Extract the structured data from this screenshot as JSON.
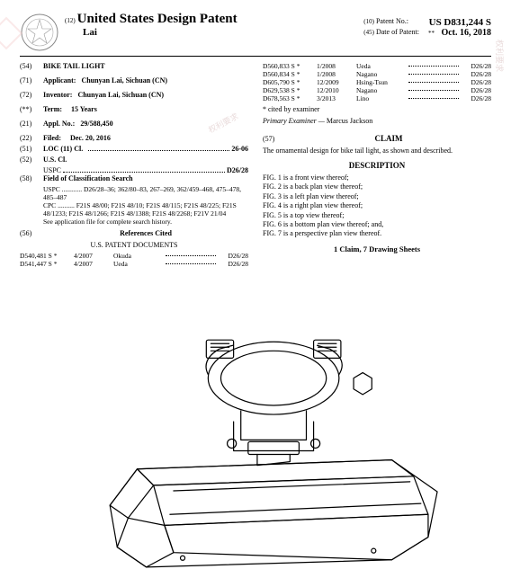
{
  "header": {
    "country_code": "(12)",
    "title": "United States Design Patent",
    "inventor_surname": "Lai",
    "patent_no_code": "(10)",
    "patent_no_label": "Patent No.:",
    "patent_no": "US D831,244 S",
    "date_code": "(45)",
    "date_label": "Date of Patent:",
    "date_stars": "**",
    "date": "Oct. 16, 2018"
  },
  "left": {
    "title_code": "(54)",
    "title_label": "BIKE TAIL LIGHT",
    "applicant_code": "(71)",
    "applicant_label": "Applicant:",
    "applicant": "Chunyan Lai, Sichuan (CN)",
    "inventor_code": "(72)",
    "inventor_label": "Inventor:",
    "inventor": "Chunyan Lai, Sichuan (CN)",
    "term_code": "(**)",
    "term_label": "Term:",
    "term": "15 Years",
    "appl_code": "(21)",
    "appl_label": "Appl. No.:",
    "appl_no": "29/588,450",
    "filed_code": "(22)",
    "filed_label": "Filed:",
    "filed": "Dec. 20, 2016",
    "loc_code": "(51)",
    "loc_label": "LOC (11) Cl.",
    "loc_val": "26-06",
    "uscl_code": "(52)",
    "uscl_label": "U.S. Cl.",
    "uscl_sub_label": "USPC",
    "uscl_val": "D26/28",
    "search_code": "(58)",
    "search_label": "Field of Classification Search",
    "search_uspc_label": "USPC",
    "search_uspc": "D26/28–36; 362/80–83, 267–269, 362/459–468, 475–478, 485–487",
    "search_cpc_label": "CPC",
    "search_cpc": "F21S 48/00; F21S 48/10; F21S 48/115; F21S 48/225; F21S 48/1233; F21S 48/1266; F21S 48/1388; F21S 48/2268; F21V 21/04",
    "search_note": "See application file for complete search history.",
    "refs_code": "(56)",
    "refs_label": "References Cited",
    "refs_subhead": "U.S. PATENT DOCUMENTS",
    "refs": [
      {
        "id": "D540,481 S *",
        "date": "4/2007",
        "name": "Okuda",
        "class": "D26/28"
      },
      {
        "id": "D541,447 S *",
        "date": "4/2007",
        "name": "Ueda",
        "class": "D26/28"
      }
    ]
  },
  "right": {
    "refs_more": [
      {
        "id": "D560,833 S *",
        "date": "1/2008",
        "name": "Ueda",
        "class": "D26/28"
      },
      {
        "id": "D560,834 S *",
        "date": "1/2008",
        "name": "Nagano",
        "class": "D26/28"
      },
      {
        "id": "D605,790 S *",
        "date": "12/2009",
        "name": "Hsing-Tsun",
        "class": "D26/28"
      },
      {
        "id": "D629,538 S *",
        "date": "12/2010",
        "name": "Nagano",
        "class": "D26/28"
      },
      {
        "id": "D678,563 S *",
        "date": "3/2013",
        "name": "Lino",
        "class": "D26/28"
      }
    ],
    "cited_note": "* cited by examiner",
    "examiner_label": "Primary Examiner —",
    "examiner": "Marcus Jackson",
    "abstract_code": "(57)",
    "claim_head": "CLAIM",
    "claim_text": "The ornamental design for bike tail light, as shown and described.",
    "desc_head": "DESCRIPTION",
    "figs": [
      "FIG. 1 is a front view thereof;",
      "FIG. 2 is a back plan view thereof;",
      "FIG. 3 is a left plan view thereof;",
      "FIG. 4 is a right plan view thereof;",
      "FIG. 5 is a top view thereof;",
      "FIG. 6 is a bottom plan view thereof; and,",
      "FIG. 7 is a perspective plan view thereof."
    ],
    "claims_line": "1 Claim, 7 Drawing Sheets"
  },
  "style": {
    "page_bg": "#ffffff",
    "text_color": "#000000",
    "font_family": "Times New Roman",
    "base_font_size_pt": 8,
    "title_font_size_pt": 15,
    "border_color": "#000000"
  }
}
